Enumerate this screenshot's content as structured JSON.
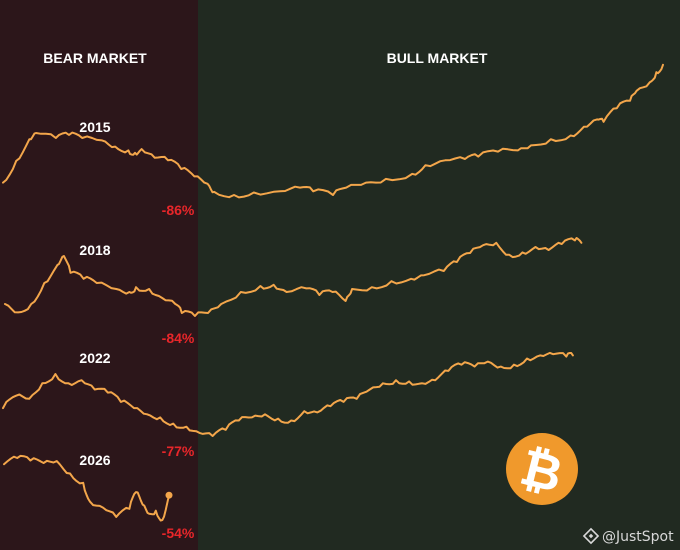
{
  "colors": {
    "bear_bg": "#2c161a",
    "bull_bg": "#212a21",
    "line": "#f3a64b",
    "drawdown": "#e8262a",
    "bitcoin": "#f0992c"
  },
  "chart_data": {
    "type": "line",
    "title": "",
    "panel_labels": {
      "bear": "BEAR MARKET",
      "bull": "BULL MARKET"
    },
    "series": [
      {
        "name": "2015",
        "drawdown_label": "-86%",
        "ends_in": "bull",
        "points": [
          [
            0,
            0.2
          ],
          [
            2,
            0.55
          ],
          [
            4,
            0.9
          ],
          [
            5,
            1.0
          ],
          [
            8,
            0.92
          ],
          [
            10,
            0.97
          ],
          [
            12,
            0.92
          ],
          [
            15,
            0.88
          ],
          [
            17,
            0.78
          ],
          [
            19,
            0.72
          ],
          [
            20,
            0.68
          ],
          [
            21,
            0.74
          ],
          [
            23,
            0.6
          ],
          [
            25,
            0.56
          ],
          [
            27,
            0.42
          ],
          [
            29,
            0.3
          ],
          [
            31,
            0.18
          ],
          [
            32,
            0.05
          ],
          [
            35,
            0.0
          ],
          [
            38,
            0.04
          ],
          [
            42,
            0.06
          ],
          [
            45,
            0.12
          ],
          [
            47,
            0.06
          ],
          [
            50,
            0.0
          ],
          [
            52,
            0.12
          ],
          [
            55,
            0.2
          ],
          [
            58,
            0.26
          ],
          [
            62,
            0.34
          ],
          [
            64,
            0.48
          ],
          [
            67,
            0.56
          ],
          [
            70,
            0.58
          ],
          [
            72,
            0.62
          ],
          [
            75,
            0.7
          ],
          [
            78,
            0.72
          ],
          [
            80,
            0.8
          ],
          [
            83,
            0.9
          ],
          [
            86,
            0.96
          ],
          [
            88,
            1.1
          ],
          [
            90,
            1.22
          ],
          [
            91,
            1.18
          ],
          [
            93,
            1.4
          ],
          [
            95,
            1.52
          ],
          [
            96,
            1.68
          ],
          [
            98,
            1.82
          ],
          [
            99,
            1.98
          ],
          [
            100,
            2.1
          ]
        ]
      },
      {
        "name": "2018",
        "drawdown_label": "-84%",
        "ends_in": "bull",
        "points": [
          [
            0,
            0.2
          ],
          [
            2,
            0.06
          ],
          [
            4,
            0.2
          ],
          [
            6,
            0.55
          ],
          [
            8,
            0.85
          ],
          [
            9,
            1.0
          ],
          [
            10,
            0.72
          ],
          [
            12,
            0.62
          ],
          [
            14,
            0.55
          ],
          [
            17,
            0.45
          ],
          [
            19,
            0.4
          ],
          [
            20,
            0.48
          ],
          [
            22,
            0.45
          ],
          [
            24,
            0.3
          ],
          [
            26,
            0.2
          ],
          [
            27,
            0.05
          ],
          [
            29,
            0.0
          ],
          [
            31,
            0.05
          ],
          [
            33,
            0.2
          ],
          [
            36,
            0.4
          ],
          [
            39,
            0.5
          ],
          [
            41,
            0.52
          ],
          [
            43,
            0.4
          ],
          [
            46,
            0.46
          ],
          [
            48,
            0.35
          ],
          [
            50,
            0.4
          ],
          [
            52,
            0.25
          ],
          [
            53,
            0.45
          ],
          [
            56,
            0.48
          ],
          [
            59,
            0.58
          ],
          [
            62,
            0.62
          ],
          [
            64,
            0.68
          ],
          [
            67,
            0.75
          ],
          [
            69,
            0.9
          ],
          [
            71,
            1.05
          ],
          [
            73,
            1.18
          ],
          [
            75,
            1.22
          ],
          [
            77,
            1.02
          ],
          [
            79,
            1.06
          ],
          [
            81,
            1.15
          ],
          [
            83,
            1.1
          ],
          [
            85,
            1.2
          ],
          [
            87,
            1.26
          ],
          [
            88,
            1.22
          ]
        ]
      },
      {
        "name": "2022",
        "drawdown_label": "-77%",
        "ends_in": "bull",
        "points": [
          [
            0,
            0.45
          ],
          [
            2,
            0.65
          ],
          [
            4,
            0.6
          ],
          [
            6,
            0.85
          ],
          [
            8,
            1.0
          ],
          [
            10,
            0.85
          ],
          [
            12,
            0.9
          ],
          [
            14,
            0.75
          ],
          [
            16,
            0.7
          ],
          [
            18,
            0.55
          ],
          [
            20,
            0.45
          ],
          [
            22,
            0.35
          ],
          [
            24,
            0.3
          ],
          [
            26,
            0.2
          ],
          [
            28,
            0.15
          ],
          [
            30,
            0.05
          ],
          [
            32,
            0.0
          ],
          [
            34,
            0.1
          ],
          [
            36,
            0.25
          ],
          [
            38,
            0.3
          ],
          [
            40,
            0.35
          ],
          [
            42,
            0.28
          ],
          [
            44,
            0.25
          ],
          [
            46,
            0.4
          ],
          [
            48,
            0.38
          ],
          [
            50,
            0.48
          ],
          [
            52,
            0.55
          ],
          [
            54,
            0.6
          ],
          [
            56,
            0.75
          ],
          [
            58,
            0.85
          ],
          [
            60,
            0.9
          ],
          [
            62,
            0.88
          ],
          [
            64,
            0.85
          ],
          [
            66,
            0.9
          ],
          [
            68,
            1.05
          ],
          [
            70,
            1.15
          ],
          [
            72,
            1.12
          ],
          [
            74,
            1.2
          ],
          [
            76,
            1.12
          ],
          [
            78,
            1.15
          ],
          [
            80,
            1.25
          ],
          [
            82,
            1.3
          ],
          [
            84,
            1.32
          ],
          [
            86,
            1.28
          ],
          [
            87,
            1.3
          ]
        ]
      },
      {
        "name": "2026",
        "drawdown_label": "-54%",
        "ends_in": "bear",
        "points": [
          [
            0,
            0.9
          ],
          [
            2,
            1.0
          ],
          [
            4,
            0.96
          ],
          [
            6,
            0.92
          ],
          [
            8,
            0.95
          ],
          [
            10,
            0.75
          ],
          [
            12,
            0.6
          ],
          [
            13,
            0.3
          ],
          [
            15,
            0.2
          ],
          [
            17,
            0.05
          ],
          [
            19,
            0.18
          ],
          [
            20,
            0.45
          ],
          [
            21,
            0.25
          ],
          [
            22,
            0.1
          ],
          [
            23,
            0.15
          ],
          [
            24,
            0.0
          ],
          [
            25,
            0.4
          ]
        ]
      }
    ],
    "bitcoin_symbol": "₿",
    "credit": "@JustSpot"
  }
}
